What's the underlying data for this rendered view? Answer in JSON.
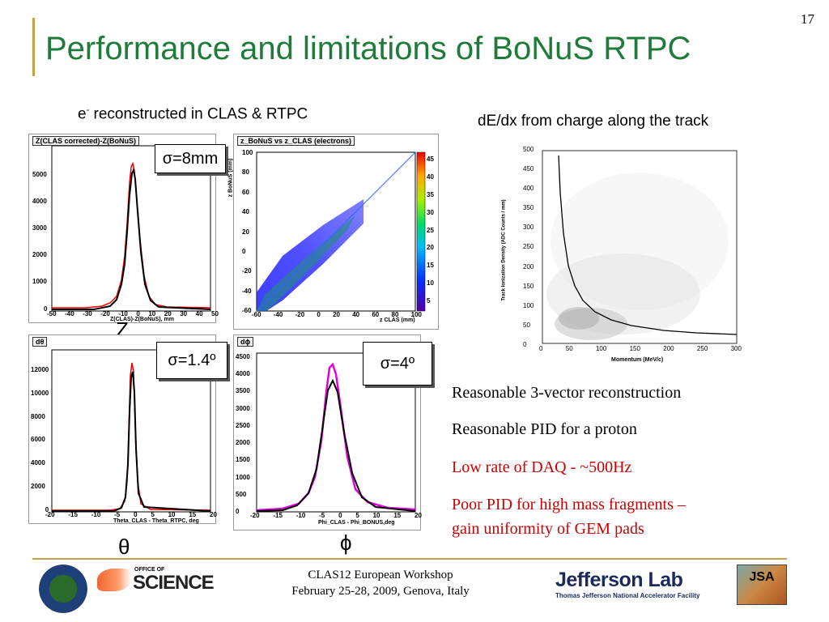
{
  "slide": {
    "title": "Performance and limitations of BoNuS RTPC",
    "page_number": "17"
  },
  "left_section": {
    "heading_prefix": "e",
    "heading_sup": "-",
    "heading_rest": " reconstructed in CLAS & RTPC",
    "plots": [
      {
        "title": "Z(CLAS corrected)-Z(BoNuS)",
        "sigma": "σ=8mm",
        "xlabel": "Z(CLAS)-Z(BoNuS), mm",
        "var": "Z",
        "x_ticks": [
          "-50",
          "-40",
          "-30",
          "-20",
          "-10",
          "0",
          "10",
          "20",
          "30",
          "40",
          "50"
        ],
        "y_ticks": [
          "0",
          "1000",
          "2000",
          "3000",
          "4000",
          "5000"
        ]
      },
      {
        "title": "z_BoNuS vs z_CLAS (electrons)",
        "ylabel": "z BoNuS (mm)",
        "xlabel": "z CLAS (mm)",
        "x_ticks": [
          "-60",
          "-40",
          "-20",
          "0",
          "20",
          "40",
          "60",
          "80",
          "100"
        ],
        "y_ticks": [
          "-60",
          "-40",
          "-20",
          "0",
          "20",
          "40",
          "60",
          "80",
          "100"
        ],
        "z_ticks": [
          "5",
          "10",
          "15",
          "20",
          "25",
          "30",
          "35",
          "40",
          "45"
        ]
      },
      {
        "title": "dθ",
        "sigma": "σ=1.4º",
        "xlabel": "Theta_CLAS - Theta_RTPC, deg",
        "var": "θ",
        "x_ticks": [
          "-20",
          "-15",
          "-10",
          "-5",
          "0",
          "5",
          "10",
          "15",
          "20"
        ],
        "y_ticks": [
          "0",
          "2000",
          "4000",
          "6000",
          "8000",
          "10000",
          "12000"
        ]
      },
      {
        "title": "dϕ",
        "sigma": "σ=4º",
        "xlabel": "Phi_CLAS - Phi_BONUS,deg",
        "var": "ϕ",
        "x_ticks": [
          "-20",
          "-15",
          "-10",
          "-5",
          "0",
          "5",
          "10",
          "15",
          "20"
        ],
        "y_ticks": [
          "0",
          "500",
          "1000",
          "1500",
          "2000",
          "2500",
          "3000",
          "3500",
          "4000",
          "4500"
        ]
      }
    ]
  },
  "right_section": {
    "heading": "dE/dx from charge along the track",
    "plot": {
      "xlabel": "Momentum (MeV/c)",
      "ylabel": "Track Ionization Density (ADC Counts / mm)",
      "x_ticks": [
        "0",
        "50",
        "100",
        "150",
        "200",
        "250",
        "300"
      ],
      "y_ticks": [
        "0",
        "50",
        "100",
        "150",
        "200",
        "250",
        "300",
        "350",
        "400",
        "450",
        "500"
      ]
    },
    "bullets": [
      {
        "text": "Reasonable 3-vector reconstruction",
        "color": "#000000"
      },
      {
        "text": "Reasonable PID for a proton",
        "color": "#000000"
      },
      {
        "text": "Low rate of DAQ - ~500Hz",
        "color": "#cc0000"
      },
      {
        "text": "Poor PID for high mass fragments –",
        "color": "#cc0000"
      },
      {
        "text": "gain uniformity of GEM pads",
        "color": "#cc0000"
      }
    ]
  },
  "footer": {
    "line1": "CLAS12 European Workshop",
    "line2": "February 25-28, 2009, Genova, Italy",
    "office_of": "OFFICE OF",
    "science": "SCIENCE",
    "jlab": "Jefferson Lab",
    "jlab_sub": "Thomas Jefferson National Accelerator Facility",
    "jsa": "JSA"
  },
  "colors": {
    "title_green": "#1e7b3a",
    "accent_gold": "#c8a24a",
    "bullet_red": "#cc0000"
  }
}
